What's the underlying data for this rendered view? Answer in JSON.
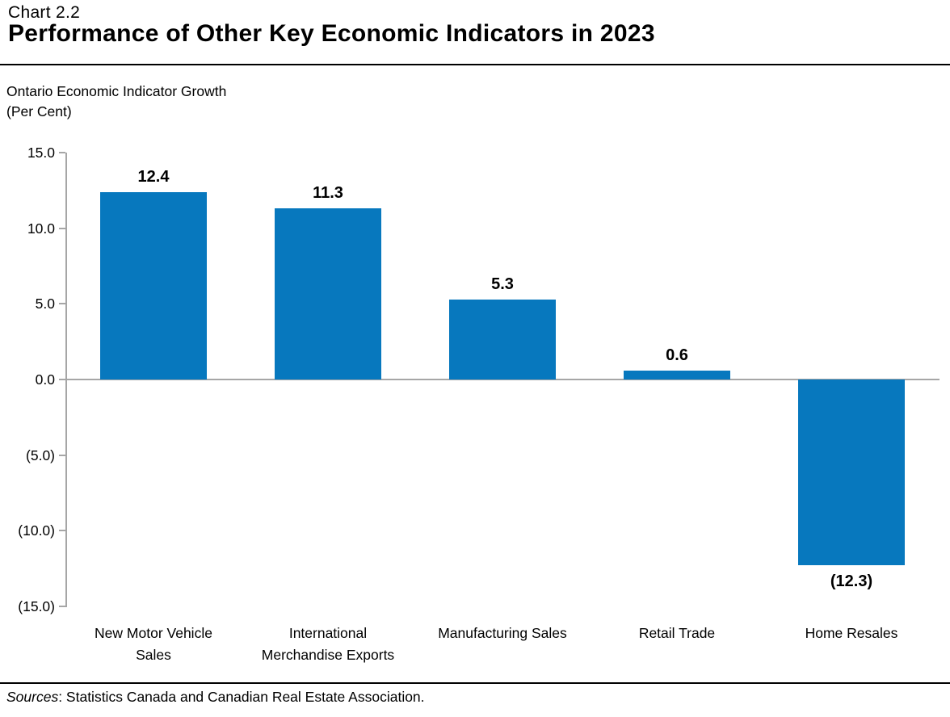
{
  "header": {
    "chart_number": "Chart 2.2",
    "title": "Performance of Other Key Economic Indicators in 2023"
  },
  "axis_caption": {
    "line1": "Ontario Economic Indicator Growth",
    "line2": "(Per Cent)"
  },
  "footer": {
    "sources_label": "Sources",
    "sources_rest": ": Statistics Canada and Canadian Real Estate Association."
  },
  "colors": {
    "bar": "#0778BE",
    "axis": "#A6A6A6",
    "text": "#000000"
  },
  "chart_data": {
    "type": "bar",
    "title": "Performance of Other Key Economic Indicators in 2023",
    "ylabel": "Ontario Economic Indicator Growth (Per Cent)",
    "categories": [
      "New Motor Vehicle\nSales",
      "International\nMerchandise Exports",
      "Manufacturing Sales",
      "Retail Trade",
      "Home Resales"
    ],
    "values": [
      12.4,
      11.3,
      5.3,
      0.6,
      -12.3
    ],
    "value_labels": [
      "12.4",
      "11.3",
      "5.3",
      "0.6",
      "(12.3)"
    ],
    "ylim": [
      -15,
      15
    ],
    "ytick_values": [
      15,
      10,
      5,
      0,
      -5,
      -10,
      -15
    ],
    "ytick_labels": [
      "15.0",
      "10.0",
      "5.0",
      "0.0",
      "(5.0)",
      "(10.0)",
      "(15.0)"
    ],
    "grid": false,
    "legend_position": "none"
  }
}
